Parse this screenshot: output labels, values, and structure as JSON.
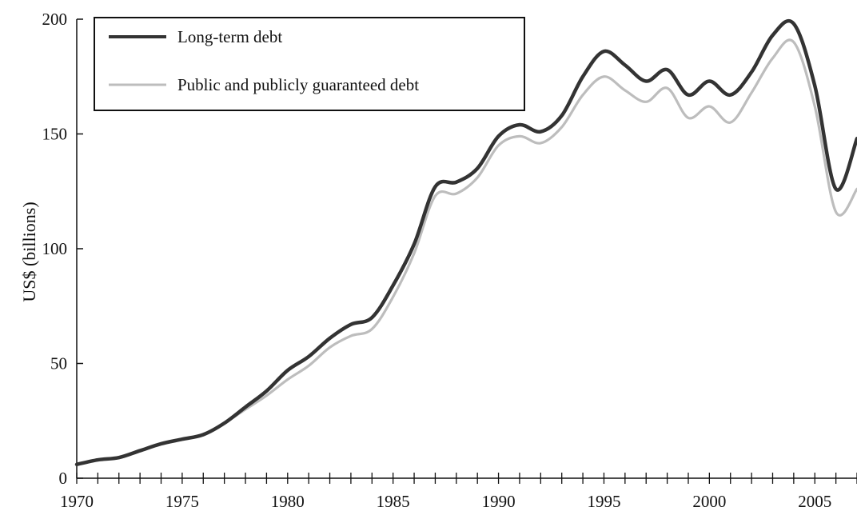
{
  "chart_data": {
    "type": "line",
    "title": "",
    "xlabel": "",
    "ylabel": "US$ (billions)",
    "xlim": [
      1970,
      2007
    ],
    "ylim": [
      0,
      200
    ],
    "x_ticks": [
      1970,
      1975,
      1980,
      1985,
      1990,
      1995,
      2000,
      2005
    ],
    "y_ticks": [
      0,
      50,
      100,
      150,
      200
    ],
    "grid": false,
    "legend_position": "top-left",
    "x": [
      1970,
      1971,
      1972,
      1973,
      1974,
      1975,
      1976,
      1977,
      1978,
      1979,
      1980,
      1981,
      1982,
      1983,
      1984,
      1985,
      1986,
      1987,
      1988,
      1989,
      1990,
      1991,
      1992,
      1993,
      1994,
      1995,
      1996,
      1997,
      1998,
      1999,
      2000,
      2001,
      2002,
      2003,
      2004,
      2005,
      2006,
      2007
    ],
    "series": [
      {
        "name": "Long-term debt",
        "color": "#333333",
        "values": [
          6,
          8,
          9,
          12,
          15,
          17,
          19,
          24,
          31,
          38,
          47,
          53,
          61,
          67,
          70,
          84,
          102,
          127,
          129,
          135,
          149,
          154,
          151,
          158,
          175,
          186,
          180,
          173,
          178,
          167,
          173,
          167,
          177,
          193,
          198,
          171,
          126,
          148
        ]
      },
      {
        "name": "Public and publicly guaranteed debt",
        "color": "#bdbdbd",
        "values": [
          6,
          8,
          9,
          12,
          15,
          17,
          19,
          24,
          30,
          36,
          43,
          49,
          57,
          62,
          65,
          79,
          98,
          123,
          124,
          131,
          145,
          149,
          146,
          153,
          167,
          175,
          169,
          164,
          170,
          157,
          162,
          155,
          168,
          183,
          190,
          162,
          116,
          126
        ]
      }
    ]
  }
}
